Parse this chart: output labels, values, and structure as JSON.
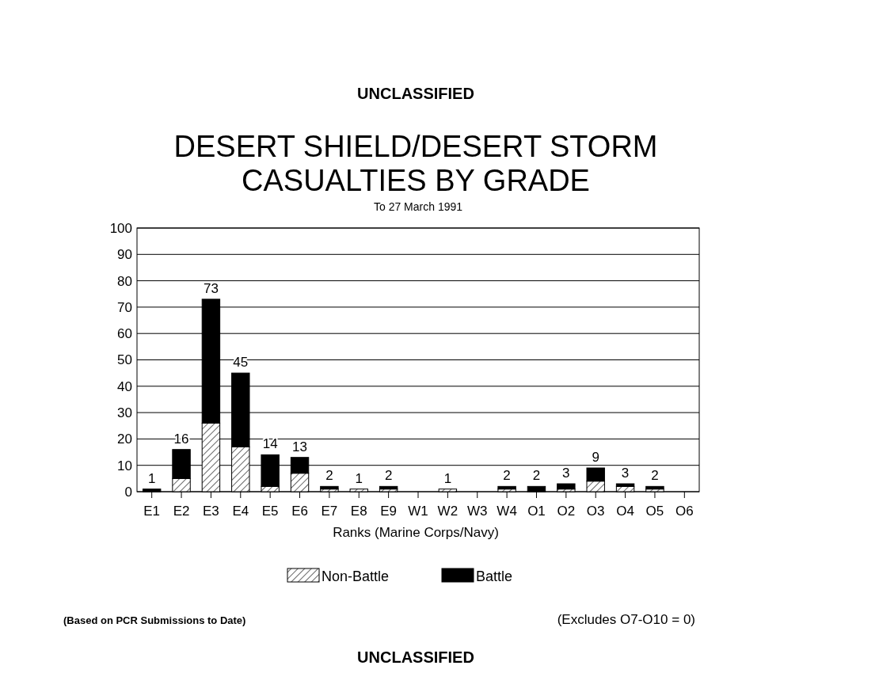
{
  "chart_data": {
    "type": "bar",
    "title": "DESERT SHIELD/DESERT STORM\nCASUALTIES BY GRADE",
    "subtitle": "To 27 March 1991",
    "xlabel": "Ranks (Marine Corps/Navy)",
    "categories": [
      "E1",
      "E2",
      "E3",
      "E4",
      "E5",
      "E6",
      "E7",
      "E8",
      "E9",
      "W1",
      "W2",
      "W3",
      "W4",
      "O1",
      "O2",
      "O3",
      "O4",
      "O5",
      "O6"
    ],
    "series": [
      {
        "name": "Non-Battle",
        "color": "#ffffff",
        "values": [
          0,
          5,
          26,
          17,
          2,
          7,
          1,
          1,
          1,
          0,
          1,
          0,
          1,
          0,
          1,
          4,
          2,
          1,
          0
        ]
      },
      {
        "name": "Battle",
        "color": "#000000",
        "values": [
          1,
          11,
          47,
          28,
          12,
          6,
          1,
          0,
          1,
          0,
          0,
          0,
          1,
          2,
          2,
          5,
          1,
          1,
          0
        ]
      }
    ],
    "stacked": true,
    "totals": [
      "1",
      "16",
      "73",
      "45",
      "14",
      "13",
      "2",
      "1",
      "2",
      null,
      "1",
      null,
      "2",
      "2",
      "3",
      "9",
      "3",
      "2",
      null
    ],
    "ylim": [
      0,
      100
    ],
    "yticks": [
      0,
      10,
      20,
      30,
      40,
      50,
      60,
      70,
      80,
      90,
      100
    ],
    "grid": "y",
    "legend": "bottom",
    "annotations": [
      "UNCLASSIFIED",
      "(Based on PCR Submissions to Date)",
      "(Excludes O7-O10 = 0)",
      "UNCLASSIFIED"
    ]
  }
}
